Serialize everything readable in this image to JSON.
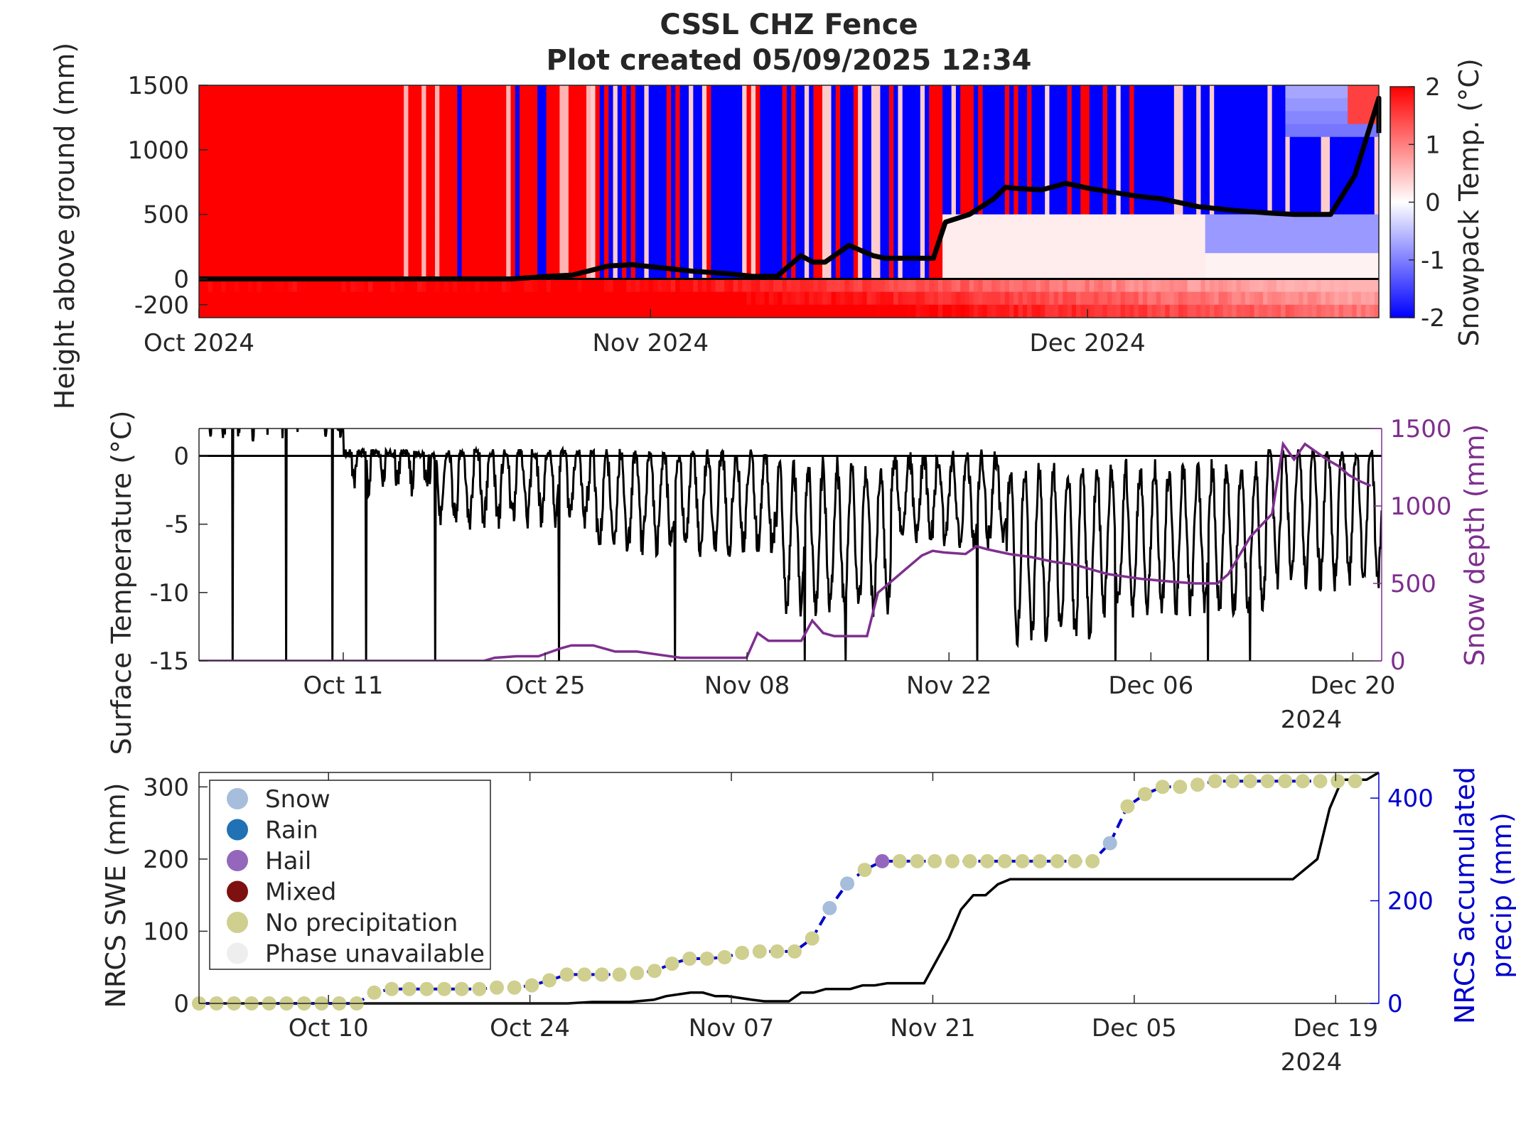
{
  "figure": {
    "title_line1": "CSSL CHZ Fence",
    "title_line2": "Plot created 05/09/2025 12:34"
  },
  "chart_data": [
    {
      "type": "heatmap",
      "name": "snowpack-temperature",
      "ylabel": "Height above ground (mm)",
      "colorbar_label": "Snowpack Temp. (°C)",
      "colorbar_ticks": [
        "2",
        "1",
        "0",
        "-1",
        "-2"
      ],
      "colorbar_range": [
        -2,
        2
      ],
      "colors": {
        "warm": "#ff0000",
        "neutral": "#ffffff",
        "cold": "#0000ff"
      },
      "ylim": [
        -300,
        1500
      ],
      "y_ticks": [
        "1500",
        "1000",
        "500",
        "0",
        "-200"
      ],
      "x_ticks": [
        "Oct 2024",
        "Nov 2024",
        "Dec 2024"
      ],
      "xlim_days": [
        0,
        81
      ],
      "snow_depth_overlay": {
        "day": [
          0,
          26,
          29,
          31,
          34,
          36,
          38,
          41,
          44,
          46,
          48,
          50,
          51,
          52,
          54,
          56,
          57,
          58,
          61,
          62,
          64,
          66,
          67,
          68,
          70,
          72,
          74,
          76,
          78,
          80,
          82,
          83,
          85,
          86,
          89,
          91,
          94,
          96,
          98
        ],
        "depth": [
          0,
          0,
          20,
          30,
          100,
          110,
          90,
          60,
          40,
          20,
          20,
          180,
          130,
          130,
          260,
          180,
          160,
          160,
          160,
          440,
          500,
          620,
          710,
          700,
          690,
          740,
          700,
          670,
          640,
          620,
          580,
          560,
          540,
          530,
          510,
          500,
          500,
          800,
          1400
        ]
      }
    },
    {
      "type": "line",
      "name": "surface-temperature",
      "ylabel": "Surface Temperature (°C)",
      "y2label": "Snow depth (mm)",
      "ylim": [
        -15,
        2
      ],
      "y_ticks": [
        "0",
        "-5",
        "-10",
        "-15"
      ],
      "y2lim": [
        0,
        1500
      ],
      "y2_ticks": [
        "1500",
        "1000",
        "500",
        "0"
      ],
      "x_ticks": [
        "Oct 11",
        "Oct 25",
        "Nov 08",
        "Nov 22",
        "Dec 06",
        "Dec 20"
      ],
      "x_year": "2024",
      "xlim_days": [
        0,
        82
      ],
      "colors": {
        "temperature": "#000000",
        "snow_depth": "#7e2f8e"
      },
      "snow_depth": {
        "day": [
          0,
          26,
          27,
          29,
          30,
          31,
          33,
          34,
          36,
          37,
          38,
          40,
          42,
          44,
          46,
          48,
          50,
          51,
          52,
          54,
          55,
          56,
          57,
          58,
          61,
          62,
          63,
          64,
          65,
          66,
          67,
          68,
          70,
          71,
          72,
          74,
          76,
          78,
          80,
          82,
          83,
          85,
          86,
          89,
          91,
          92,
          93,
          94,
          96,
          98,
          99,
          100,
          101,
          103,
          104,
          105,
          106,
          107
        ],
        "depth": [
          0,
          0,
          20,
          30,
          30,
          30,
          80,
          100,
          100,
          80,
          60,
          60,
          40,
          20,
          20,
          20,
          20,
          180,
          130,
          130,
          130,
          260,
          180,
          160,
          160,
          440,
          500,
          560,
          620,
          680,
          710,
          700,
          690,
          740,
          720,
          690,
          670,
          640,
          620,
          580,
          560,
          540,
          530,
          510,
          500,
          500,
          500,
          560,
          800,
          950,
          1400,
          1300,
          1400,
          1300,
          1260,
          1200,
          1160,
          1130
        ]
      }
    },
    {
      "type": "line",
      "name": "nrcs-swe",
      "ylabel": "NRCS SWE (mm)",
      "y2label_line1": "NRCS accumulated",
      "y2label_line2": "precip (mm)",
      "ylim": [
        0,
        320
      ],
      "y_ticks": [
        "300",
        "200",
        "100",
        "0"
      ],
      "y2lim": [
        0,
        450
      ],
      "y2_ticks": [
        "400",
        "200",
        "0"
      ],
      "x_ticks": [
        "Oct 10",
        "Oct 24",
        "Nov 07",
        "Nov 21",
        "Dec 05",
        "Dec 19"
      ],
      "x_year": "2024",
      "xlim_days": [
        0,
        82
      ],
      "colors": {
        "swe": "#000000",
        "precip_line": "#0000cd",
        "snow": "#a6bddb",
        "rain": "#2171b5",
        "hail": "#9467bd",
        "mixed": "#7f1010",
        "no_precip": "#cfcf8f",
        "unavailable": "#eeeeee"
      },
      "legend": {
        "placement": "top-left",
        "entries": [
          "Snow",
          "Rain",
          "Hail",
          "Mixed",
          "No precipitation",
          "Phase unavailable"
        ]
      },
      "swe": {
        "day": [
          0,
          27,
          30,
          32,
          35,
          37,
          38,
          40,
          41,
          42,
          43,
          45,
          46,
          47,
          48,
          49,
          50,
          51,
          53,
          54,
          55,
          56,
          57,
          59,
          61,
          62,
          63,
          64,
          65,
          66,
          67,
          69,
          71,
          73,
          75,
          77,
          79,
          81,
          83,
          85,
          87,
          89,
          91,
          92,
          93,
          94,
          95,
          96
        ],
        "swe": [
          0,
          0,
          0,
          2,
          2,
          5,
          10,
          15,
          15,
          10,
          10,
          5,
          3,
          3,
          3,
          15,
          15,
          20,
          20,
          25,
          25,
          28,
          28,
          28,
          90,
          130,
          150,
          150,
          165,
          172,
          172,
          172,
          172,
          172,
          172,
          172,
          172,
          172,
          172,
          172,
          172,
          172,
          200,
          270,
          310,
          310,
          310,
          320
        ]
      },
      "precip": {
        "day": [
          0,
          1,
          2,
          3,
          4,
          5,
          6,
          7,
          8,
          9,
          10,
          11,
          12,
          13,
          14,
          15,
          16,
          17,
          18,
          19,
          20,
          21,
          22,
          23,
          24,
          25,
          26,
          27,
          28,
          29,
          30,
          31,
          32,
          33,
          34,
          35,
          36,
          37,
          38,
          39,
          40,
          41,
          42,
          43,
          44,
          45,
          46,
          47,
          48,
          49,
          50,
          51,
          52,
          53,
          54,
          55,
          56,
          57,
          58,
          59,
          60,
          61,
          62,
          63,
          64,
          65,
          66
        ],
        "precip": [
          0,
          0,
          0,
          0,
          0,
          0,
          0,
          0,
          0,
          0,
          15,
          20,
          20,
          20,
          20,
          20,
          20,
          22,
          22,
          25,
          32,
          40,
          40,
          40,
          40,
          42,
          45,
          55,
          62,
          62,
          64,
          70,
          72,
          72,
          72,
          90,
          132,
          166,
          185,
          197,
          197,
          197,
          197,
          197,
          197,
          197,
          197,
          197,
          197,
          197,
          197,
          197,
          222,
          273,
          290,
          300,
          300,
          303,
          308,
          308,
          308,
          308,
          308,
          308,
          308,
          308,
          308
        ],
        "phase": [
          "n",
          "n",
          "n",
          "n",
          "n",
          "n",
          "n",
          "n",
          "n",
          "n",
          "n",
          "n",
          "n",
          "n",
          "n",
          "n",
          "n",
          "n",
          "n",
          "n",
          "n",
          "n",
          "n",
          "n",
          "n",
          "n",
          "n",
          "n",
          "n",
          "n",
          "n",
          "n",
          "n",
          "n",
          "n",
          "n",
          "s",
          "s",
          "n",
          "h",
          "n",
          "n",
          "n",
          "n",
          "n",
          "n",
          "n",
          "n",
          "n",
          "n",
          "n",
          "n",
          "s",
          "n",
          "n",
          "n",
          "n",
          "n",
          "n",
          "n",
          "n",
          "n",
          "n",
          "n",
          "n",
          "n",
          "n"
        ]
      }
    }
  ]
}
